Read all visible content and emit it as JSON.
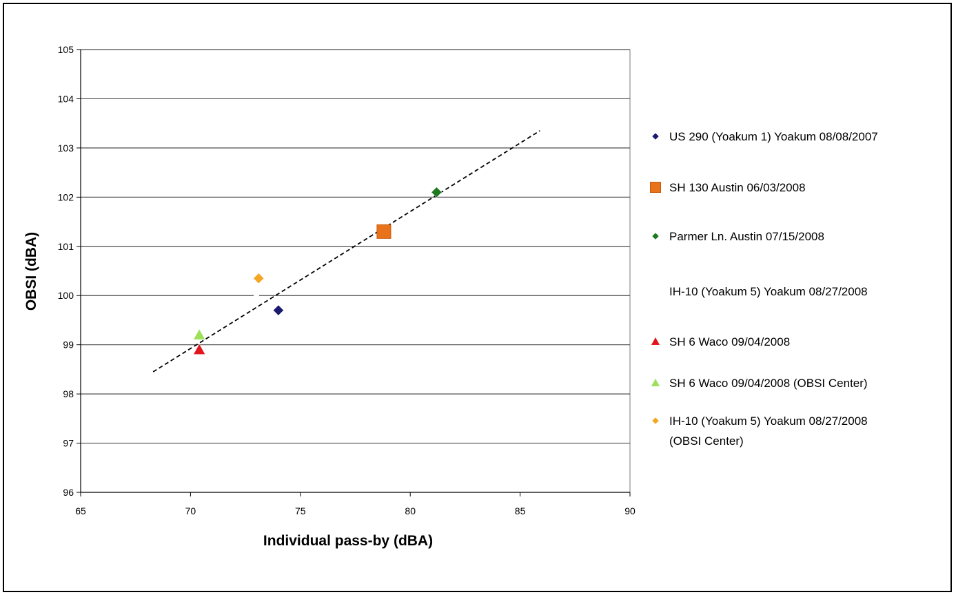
{
  "chart_data": {
    "type": "scatter",
    "title": "",
    "xlabel": "Individual pass-by (dBA)",
    "ylabel": "OBSI (dBA)",
    "xlim": [
      65,
      90
    ],
    "ylim": [
      96,
      105
    ],
    "x_ticks": [
      "65",
      "70",
      "75",
      "80",
      "85",
      "90"
    ],
    "y_ticks": [
      "96",
      "97",
      "98",
      "99",
      "100",
      "101",
      "102",
      "103",
      "104",
      "105"
    ],
    "grid": "horizontal major gridlines",
    "legend_position": "right",
    "series": [
      {
        "name": "US 290 (Yoakum 1) Yoakum 08/08/2007",
        "marker": "diamond",
        "color": "#1a1a6e",
        "points": [
          [
            74.0,
            99.7
          ]
        ]
      },
      {
        "name": "SH 130  Austin 06/03/2008",
        "marker": "square",
        "color": "#e8731a",
        "points": [
          [
            78.8,
            101.3
          ]
        ]
      },
      {
        "name": "Parmer Ln. Austin 07/15/2008",
        "marker": "diamond",
        "color": "#1e7a1e",
        "points": [
          [
            81.2,
            102.1
          ]
        ]
      },
      {
        "name": "IH-10 (Yoakum 5) Yoakum 08/27/2008",
        "marker": "none",
        "color": "#ffffff",
        "points": [
          [
            73.0,
            100.0
          ]
        ]
      },
      {
        "name": "SH 6 Waco 09/04/2008",
        "marker": "triangle",
        "color": "#e0161c",
        "points": [
          [
            70.4,
            98.9
          ]
        ]
      },
      {
        "name": "SH 6 Waco 09/04/2008 (OBSI Center)",
        "marker": "triangle",
        "color": "#9ee05a",
        "points": [
          [
            70.4,
            99.2
          ]
        ]
      },
      {
        "name": "IH-10 (Yoakum 5) Yoakum 08/27/2008 (OBSI Center)",
        "marker": "diamond",
        "color": "#f5a623",
        "points": [
          [
            73.1,
            100.35
          ]
        ]
      }
    ],
    "legend_lines": [
      [
        "US 290 (Yoakum 1) Yoakum 08/08/2007"
      ],
      [
        "SH 130  Austin 06/03/2008"
      ],
      [
        "Parmer Ln. Austin 07/15/2008"
      ],
      [
        "IH-10 (Yoakum 5) Yoakum 08/27/2008"
      ],
      [
        "SH 6 Waco 09/04/2008"
      ],
      [
        "SH 6 Waco 09/04/2008 (OBSI Center)"
      ],
      [
        "IH-10 (Yoakum 5) Yoakum 08/27/2008",
        "(OBSI Center)"
      ]
    ],
    "trendline": {
      "style": "dashed",
      "color": "#000000",
      "from": [
        68.3,
        98.45
      ],
      "to": [
        85.9,
        103.35
      ]
    }
  }
}
